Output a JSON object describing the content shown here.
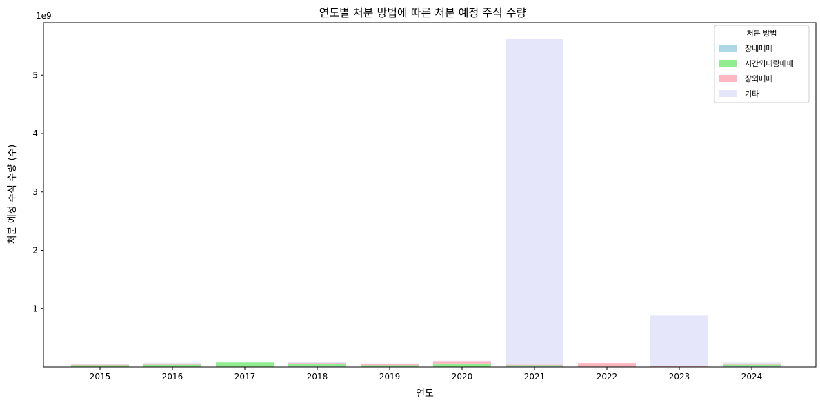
{
  "chart_data": {
    "type": "bar",
    "stacked": true,
    "title": "연도별 처분 방법에 따른 처분 예정 주식 수량",
    "xlabel": "연도",
    "ylabel": "처분 예정 주식 수량 (주)",
    "y_scale_label": "1e9",
    "ylim": [
      0,
      5.9
    ],
    "y_ticks": [
      1,
      2,
      3,
      4,
      5
    ],
    "categories": [
      "2015",
      "2016",
      "2017",
      "2018",
      "2019",
      "2020",
      "2021",
      "2022",
      "2023",
      "2024"
    ],
    "legend": {
      "title": "처분 방법",
      "placement": "top-right"
    },
    "grid": false,
    "series": [
      {
        "name": "장내매매",
        "color": "#add8e6",
        "values": [
          0.0,
          0.0,
          0.0,
          0.01,
          0.0,
          0.0,
          0.01,
          0.0,
          0.0,
          0.01
        ]
      },
      {
        "name": "시간외대량매매",
        "color": "#90ee90",
        "values": [
          0.03,
          0.04,
          0.08,
          0.04,
          0.03,
          0.06,
          0.02,
          0.0,
          0.0,
          0.03
        ]
      },
      {
        "name": "장외매매",
        "color": "#ffb6c1",
        "values": [
          0.01,
          0.02,
          0.0,
          0.02,
          0.02,
          0.03,
          0.01,
          0.07,
          0.02,
          0.02
        ]
      },
      {
        "name": "기타",
        "color": "#e6e6fa",
        "values": [
          0.01,
          0.01,
          0.0,
          0.01,
          0.01,
          0.02,
          5.58,
          0.0,
          0.86,
          0.02
        ]
      }
    ]
  }
}
